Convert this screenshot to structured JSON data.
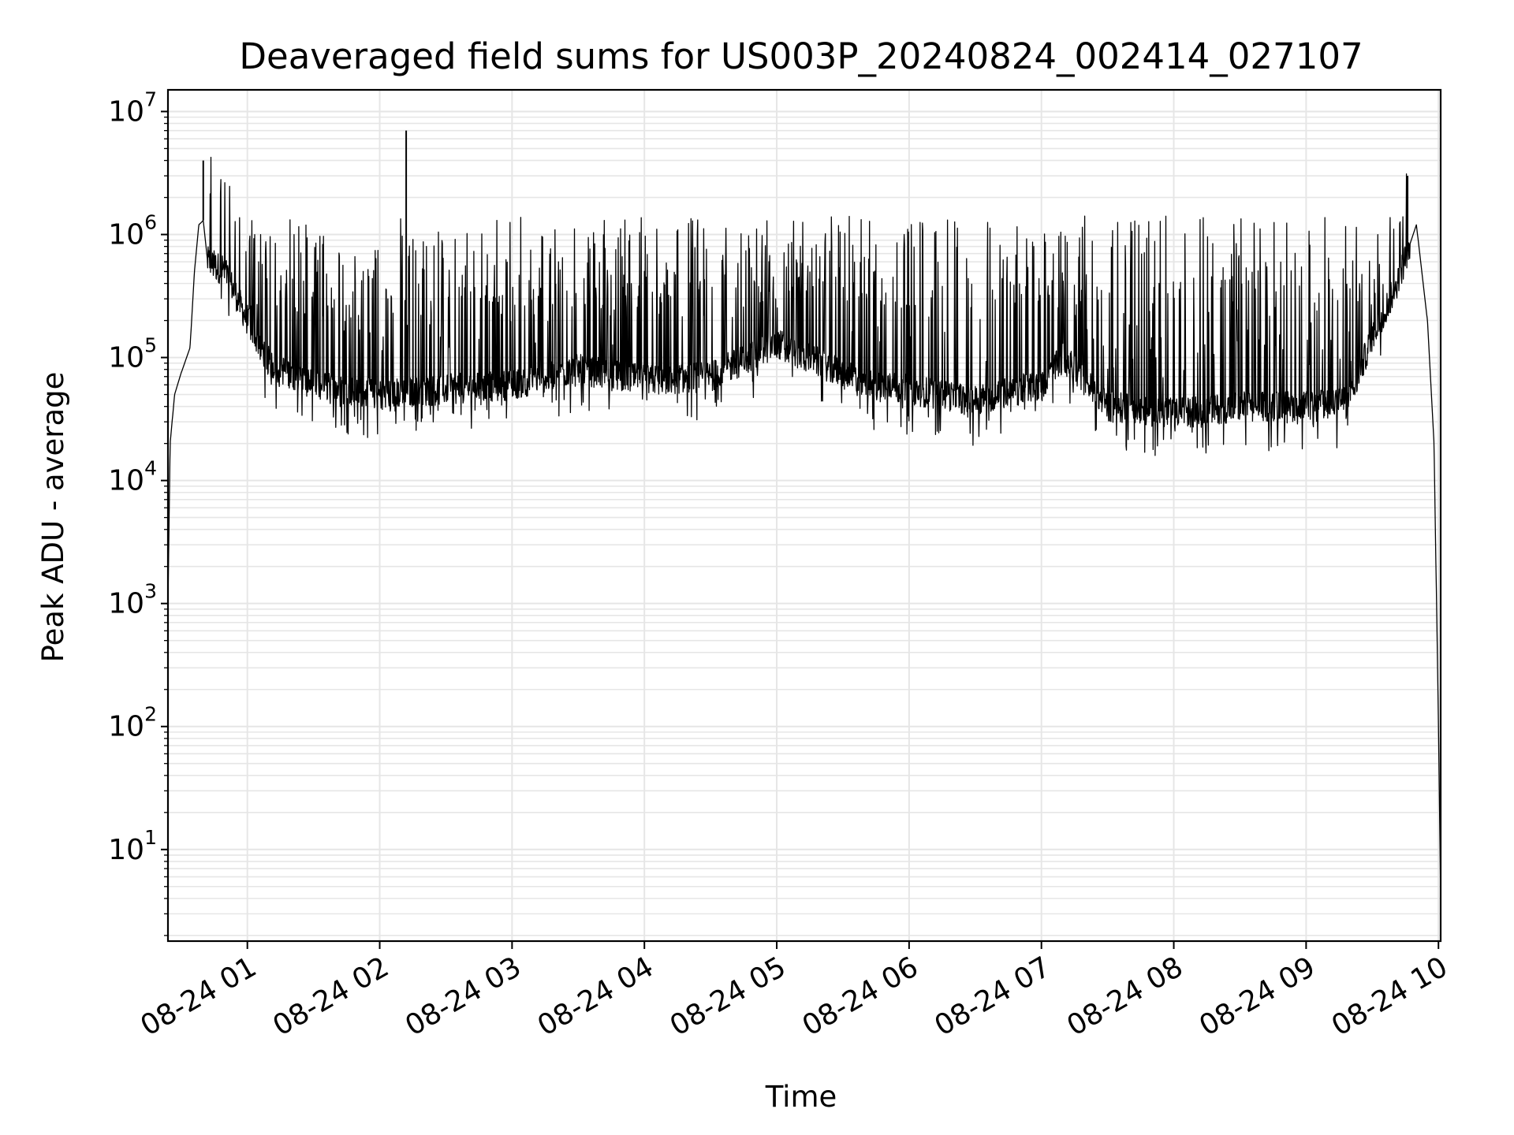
{
  "chart_data": {
    "type": "line",
    "title": "Deaveraged field sums for US003P_20240824_002414_027107",
    "xlabel": "Time",
    "ylabel": "Peak ADU - average",
    "yscale": "log",
    "ylim": [
      1.8,
      15000000
    ],
    "xlim": [
      "2024-08-24 00:24",
      "2024-08-24 10:01"
    ],
    "grid": true,
    "x_ticks": [
      {
        "x": "2024-08-24 01:00",
        "label": "08-24 01"
      },
      {
        "x": "2024-08-24 02:00",
        "label": "08-24 02"
      },
      {
        "x": "2024-08-24 03:00",
        "label": "08-24 03"
      },
      {
        "x": "2024-08-24 04:00",
        "label": "08-24 04"
      },
      {
        "x": "2024-08-24 05:00",
        "label": "08-24 05"
      },
      {
        "x": "2024-08-24 06:00",
        "label": "08-24 06"
      },
      {
        "x": "2024-08-24 07:00",
        "label": "08-24 07"
      },
      {
        "x": "2024-08-24 08:00",
        "label": "08-24 08"
      },
      {
        "x": "2024-08-24 09:00",
        "label": "08-24 09"
      },
      {
        "x": "2024-08-24 10:00",
        "label": "08-24 10"
      }
    ],
    "y_ticks": [
      {
        "y": 10,
        "base": "10",
        "exp": "1"
      },
      {
        "y": 100,
        "base": "10",
        "exp": "2"
      },
      {
        "y": 1000,
        "base": "10",
        "exp": "3"
      },
      {
        "y": 10000,
        "base": "10",
        "exp": "4"
      },
      {
        "y": 100000,
        "base": "10",
        "exp": "5"
      },
      {
        "y": 1000000,
        "base": "10",
        "exp": "6"
      },
      {
        "y": 10000000,
        "base": "10",
        "exp": "7"
      }
    ],
    "series": [
      {
        "color": "#000000",
        "baseline": [
          {
            "x": "2024-08-24 00:24",
            "y": 1000
          },
          {
            "x": "2024-08-24 00:25",
            "y": 20000
          },
          {
            "x": "2024-08-24 00:27",
            "y": 50000
          },
          {
            "x": "2024-08-24 00:30",
            "y": 75000
          },
          {
            "x": "2024-08-24 00:34",
            "y": 120000
          },
          {
            "x": "2024-08-24 00:36",
            "y": 500000
          },
          {
            "x": "2024-08-24 00:38",
            "y": 1200000
          },
          {
            "x": "2024-08-24 00:40",
            "y": 1300000
          },
          {
            "x": "2024-08-24 00:42",
            "y": 600000
          },
          {
            "x": "2024-08-24 00:50",
            "y": 500000
          },
          {
            "x": "2024-08-24 01:00",
            "y": 200000
          },
          {
            "x": "2024-08-24 01:10",
            "y": 90000
          },
          {
            "x": "2024-08-24 01:30",
            "y": 60000
          },
          {
            "x": "2024-08-24 02:00",
            "y": 50000
          },
          {
            "x": "2024-08-24 02:30",
            "y": 55000
          },
          {
            "x": "2024-08-24 03:00",
            "y": 60000
          },
          {
            "x": "2024-08-24 03:30",
            "y": 80000
          },
          {
            "x": "2024-08-24 04:00",
            "y": 65000
          },
          {
            "x": "2024-08-24 04:30",
            "y": 70000
          },
          {
            "x": "2024-08-24 05:00",
            "y": 130000
          },
          {
            "x": "2024-08-24 05:20",
            "y": 90000
          },
          {
            "x": "2024-08-24 05:40",
            "y": 60000
          },
          {
            "x": "2024-08-24 06:00",
            "y": 55000
          },
          {
            "x": "2024-08-24 06:30",
            "y": 45000
          },
          {
            "x": "2024-08-24 07:00",
            "y": 60000
          },
          {
            "x": "2024-08-24 07:10",
            "y": 100000
          },
          {
            "x": "2024-08-24 07:30",
            "y": 40000
          },
          {
            "x": "2024-08-24 08:00",
            "y": 35000
          },
          {
            "x": "2024-08-24 08:30",
            "y": 40000
          },
          {
            "x": "2024-08-24 09:00",
            "y": 40000
          },
          {
            "x": "2024-08-24 09:20",
            "y": 45000
          },
          {
            "x": "2024-08-24 09:30",
            "y": 150000
          },
          {
            "x": "2024-08-24 09:40",
            "y": 350000
          },
          {
            "x": "2024-08-24 09:50",
            "y": 1200000
          },
          {
            "x": "2024-08-24 09:55",
            "y": 200000
          },
          {
            "x": "2024-08-24 09:58",
            "y": 20000
          },
          {
            "x": "2024-08-24 10:00",
            "y": 100
          },
          {
            "x": "2024-08-24 10:01",
            "y": 4
          }
        ],
        "spikes": [
          {
            "x": "2024-08-24 00:40",
            "y": 4000000
          },
          {
            "x": "2024-08-24 02:12",
            "y": 7000000
          },
          {
            "x": "2024-08-24 09:46",
            "y": 3000000
          }
        ]
      }
    ]
  }
}
